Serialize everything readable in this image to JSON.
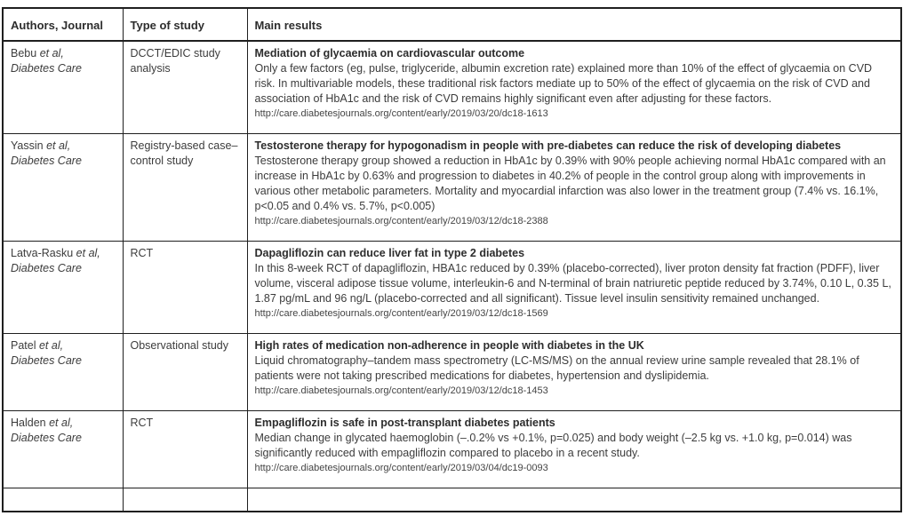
{
  "table": {
    "headers": [
      "Authors, Journal",
      "Type of study",
      "Main results"
    ],
    "rows": [
      {
        "author": "Bebu",
        "etal": "et al,",
        "journal": "Diabetes Care",
        "study_type": "DCCT/EDIC study analysis",
        "title": "Mediation of glycaemia on cardiovascular outcome",
        "summary": "Only a few factors (eg, pulse, triglyceride, albumin excretion rate) explained more than 10% of the effect of glycaemia on CVD risk. In multivariable models, these traditional risk factors mediate up to 50% of the effect of glycaemia on the risk of CVD and association of HbA1c and the risk of CVD remains highly significant even after adjusting for these factors.",
        "url": "http://care.diabetesjournals.org/content/early/2019/03/20/dc18-1613"
      },
      {
        "author": "Yassin",
        "etal": "et al,",
        "journal": "Diabetes Care",
        "study_type": "Registry-based case–control study",
        "title": "Testosterone therapy for hypogonadism in people with pre-diabetes can reduce the risk of developing diabetes",
        "summary": "Testosterone therapy group showed a reduction in HbA1c by 0.39% with 90% people achieving normal HbA1c compared with an increase in HbA1c by 0.63% and progression to diabetes in 40.2% of people in the control group along with improvements in various other metabolic parameters. Mortality and myocardial infarction was also lower in the treatment group (7.4% vs. 16.1%, p<0.05 and 0.4% vs. 5.7%, p<0.005)",
        "url": "http://care.diabetesjournals.org/content/early/2019/03/12/dc18-2388"
      },
      {
        "author": "Latva-Rasku",
        "etal": "et al,",
        "journal": "Diabetes Care",
        "study_type": "RCT",
        "title": "Dapagliflozin can reduce liver fat in type 2 diabetes",
        "summary": "In this 8-week RCT of dapagliflozin, HBA1c reduced by 0.39% (placebo-corrected), liver proton density fat fraction (PDFF), liver volume, visceral adipose tissue volume, interleukin-6 and N-terminal of brain natriuretic peptide reduced by 3.74%, 0.10 L, 0.35 L, 1.87 pg/mL and 96 ng/L (placebo-corrected and all significant). Tissue level insulin sensitivity remained unchanged.",
        "url": "http://care.diabetesjournals.org/content/early/2019/03/12/dc18-1569"
      },
      {
        "author": "Patel",
        "etal": "et al,",
        "journal": "Diabetes Care",
        "study_type": "Observational study",
        "title": "High rates of medication non-adherence in people with diabetes in the UK",
        "summary": "Liquid chromatography–tandem mass spectrometry (LC-MS/MS) on the annual review urine sample revealed that 28.1% of patients were not taking prescribed medications for diabetes, hypertension and dyslipidemia.",
        "url": "http://care.diabetesjournals.org/content/early/2019/03/12/dc18-1453"
      },
      {
        "author": "Halden",
        "etal": "et al,",
        "journal": "Diabetes Care",
        "study_type": "RCT",
        "title": "Empagliflozin is safe in post-transplant diabetes patients",
        "summary": "Median change in glycated haemoglobin (–.0.2% vs +0.1%, p=0.025) and body weight (–2.5 kg vs. +1.0 kg, p=0.014) was significantly reduced with empagliflozin compared to placebo in a recent study.",
        "url": "http://care.diabetesjournals.org/content/early/2019/03/04/dc19-0093"
      }
    ]
  },
  "colors": {
    "border": "#1f1f1f",
    "body_text": "#3c3c3c",
    "heading_text": "#2d2d2d"
  }
}
